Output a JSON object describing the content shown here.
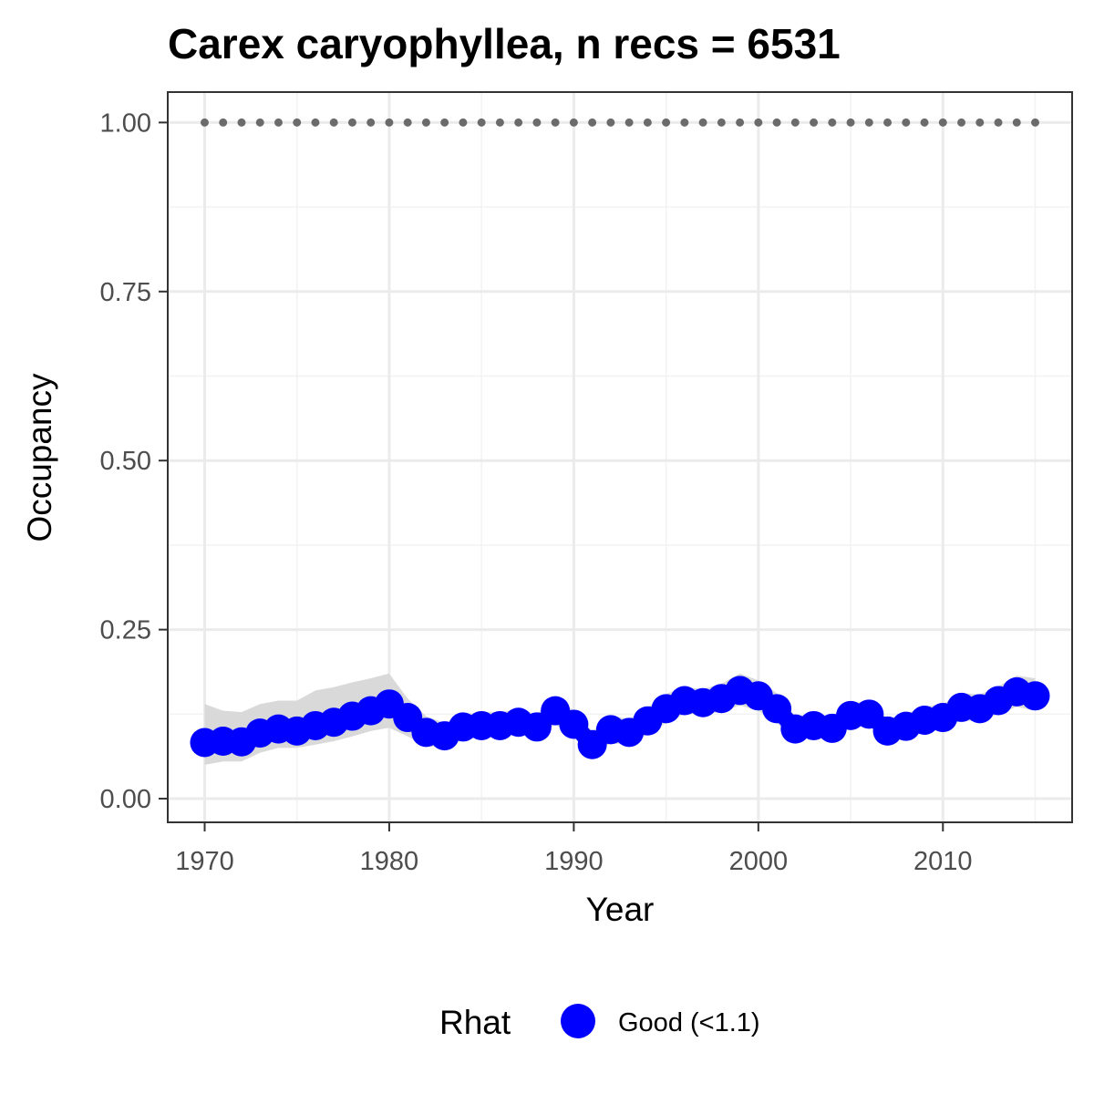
{
  "chart_data": {
    "type": "line",
    "title": "Carex caryophyllea, n recs = 6531",
    "xlabel": "Year",
    "ylabel": "Occupancy",
    "xlim": [
      1968,
      2017
    ],
    "ylim": [
      -0.035,
      1.045
    ],
    "x_ticks": [
      1970,
      1980,
      1990,
      2000,
      2010
    ],
    "x_tick_labels": [
      "1970",
      "1980",
      "1990",
      "2000",
      "2010"
    ],
    "y_ticks": [
      0,
      0.25,
      0.5,
      0.75,
      1.0
    ],
    "y_tick_labels": [
      "0.00",
      "0.25",
      "0.50",
      "0.75",
      "1.00"
    ],
    "grid": true,
    "legend": {
      "title": "Rhat",
      "position": "bottom",
      "entries": [
        {
          "label": "Good (<1.1)",
          "color": "#0000ff"
        }
      ]
    },
    "colors": {
      "series": "#0000ff",
      "ribbon": "#d9d9d9",
      "reference": "#6b6b6b"
    },
    "x": [
      1970,
      1971,
      1972,
      1973,
      1974,
      1975,
      1976,
      1977,
      1978,
      1979,
      1980,
      1981,
      1982,
      1983,
      1984,
      1985,
      1986,
      1987,
      1988,
      1989,
      1990,
      1991,
      1992,
      1993,
      1994,
      1995,
      1996,
      1997,
      1998,
      1999,
      2000,
      2001,
      2002,
      2003,
      2004,
      2005,
      2006,
      2007,
      2008,
      2009,
      2010,
      2011,
      2012,
      2013,
      2014,
      2015
    ],
    "series": [
      {
        "values": [
          0.083,
          0.085,
          0.084,
          0.097,
          0.103,
          0.1,
          0.108,
          0.113,
          0.122,
          0.13,
          0.14,
          0.12,
          0.098,
          0.093,
          0.106,
          0.108,
          0.108,
          0.113,
          0.106,
          0.13,
          0.11,
          0.08,
          0.102,
          0.098,
          0.115,
          0.133,
          0.145,
          0.142,
          0.148,
          0.16,
          0.152,
          0.133,
          0.103,
          0.108,
          0.104,
          0.123,
          0.125,
          0.1,
          0.107,
          0.116,
          0.12,
          0.135,
          0.133,
          0.145,
          0.158,
          0.152
        ],
        "lower": [
          0.05,
          0.055,
          0.055,
          0.068,
          0.075,
          0.075,
          0.08,
          0.085,
          0.092,
          0.1,
          0.105,
          0.092,
          0.078,
          0.075,
          0.088,
          0.09,
          0.092,
          0.096,
          0.09,
          0.11,
          0.09,
          0.065,
          0.082,
          0.08,
          0.095,
          0.112,
          0.125,
          0.125,
          0.128,
          0.138,
          0.13,
          0.112,
          0.086,
          0.09,
          0.088,
          0.106,
          0.108,
          0.084,
          0.09,
          0.098,
          0.102,
          0.116,
          0.114,
          0.125,
          0.136,
          0.13
        ],
        "upper": [
          0.14,
          0.13,
          0.128,
          0.14,
          0.145,
          0.145,
          0.16,
          0.165,
          0.172,
          0.178,
          0.185,
          0.148,
          0.122,
          0.112,
          0.125,
          0.128,
          0.128,
          0.132,
          0.125,
          0.152,
          0.13,
          0.1,
          0.122,
          0.118,
          0.135,
          0.155,
          0.165,
          0.162,
          0.17,
          0.185,
          0.175,
          0.156,
          0.122,
          0.126,
          0.122,
          0.142,
          0.144,
          0.118,
          0.126,
          0.136,
          0.14,
          0.156,
          0.154,
          0.166,
          0.182,
          0.178
        ]
      },
      {
        "values": [
          1,
          1,
          1,
          1,
          1,
          1,
          1,
          1,
          1,
          1,
          1,
          1,
          1,
          1,
          1,
          1,
          1,
          1,
          1,
          1,
          1,
          1,
          1,
          1,
          1,
          1,
          1,
          1,
          1,
          1,
          1,
          1,
          1,
          1,
          1,
          1,
          1,
          1,
          1,
          1,
          1,
          1,
          1,
          1,
          1,
          1
        ]
      }
    ]
  }
}
